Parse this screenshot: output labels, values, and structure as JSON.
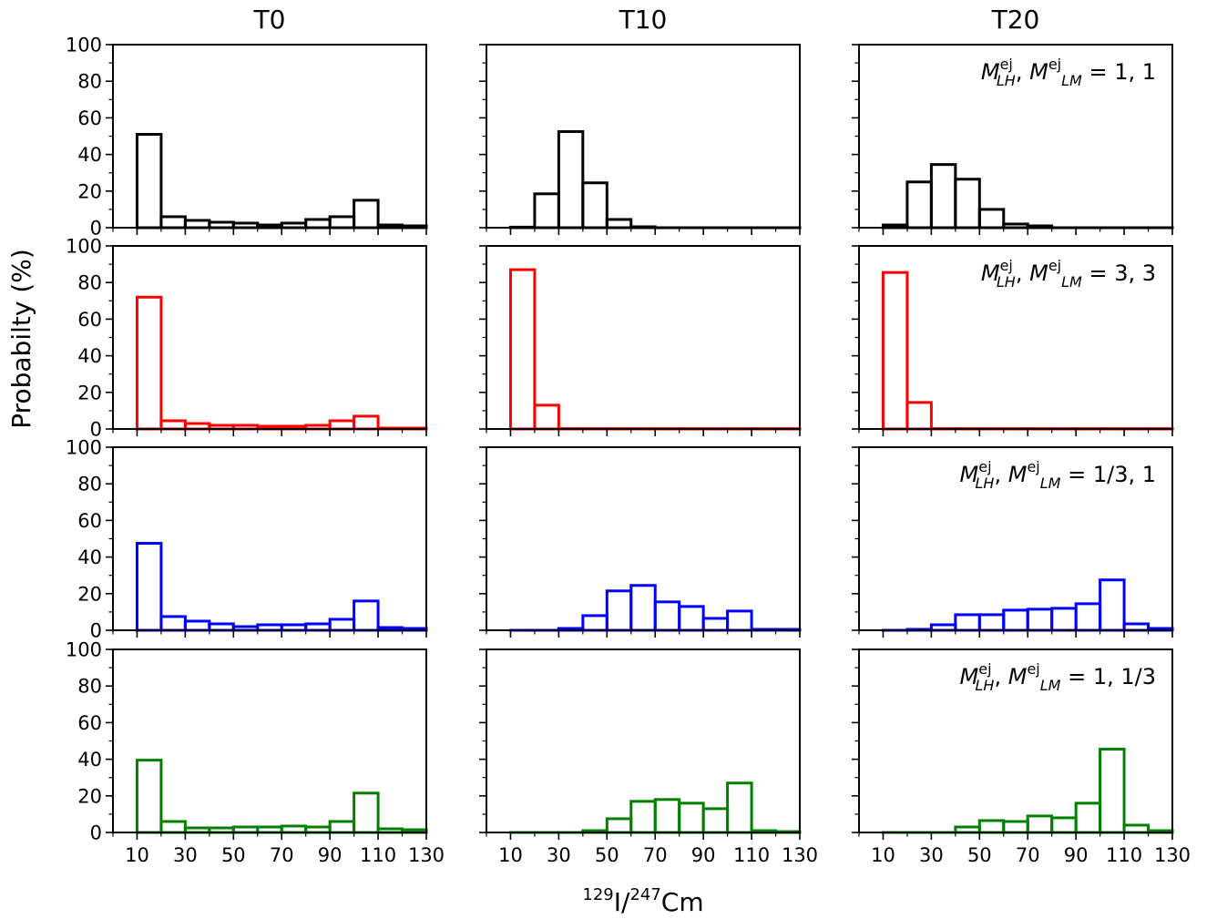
{
  "chart_data": {
    "type": "bar",
    "subtype": "step-histogram-grid",
    "columns": [
      "T0",
      "T10",
      "T20"
    ],
    "ylabel": "Probabilty (%)",
    "xlabel": {
      "sup1": "129",
      "main1": "I/",
      "sup2": "247",
      "main2": "Cm"
    },
    "xlim": [
      0,
      130
    ],
    "ylim": [
      0,
      100
    ],
    "xticks": [
      "10",
      "30",
      "50",
      "70",
      "90",
      "110",
      "130"
    ],
    "yticks": [
      "0",
      "20",
      "40",
      "60",
      "80",
      "100"
    ],
    "bin_edges": [
      10,
      20,
      30,
      40,
      50,
      60,
      70,
      80,
      90,
      100,
      110,
      120,
      130
    ],
    "rows": [
      {
        "color": "#000000",
        "annotation": {
          "m": "M",
          "sup": "ej",
          "sub1": "LH",
          "sub2": "LM",
          "value": " = 1, 1"
        },
        "series": [
          {
            "name": "T0",
            "values": [
              51,
              6,
              4,
              3,
              2.5,
              1.5,
              2.5,
              4.5,
              6,
              15,
              1.5,
              1
            ]
          },
          {
            "name": "T10",
            "values": [
              0.3,
              18.5,
              52.5,
              24.5,
              4.5,
              0.5,
              0,
              0,
              0,
              0,
              0,
              0
            ]
          },
          {
            "name": "T20",
            "values": [
              1.5,
              25,
              34.5,
              26.5,
              10,
              2,
              1,
              0,
              0,
              0,
              0,
              0
            ]
          }
        ]
      },
      {
        "color": "#ff0000",
        "annotation": {
          "m": "M",
          "sup": "ej",
          "sub1": "LH",
          "sub2": "LM",
          "value": " = 3, 3"
        },
        "series": [
          {
            "name": "T0",
            "values": [
              72,
              4.5,
              3,
              2,
              2,
              1.5,
              1.5,
              2,
              4.5,
              7,
              0.5,
              0.5
            ]
          },
          {
            "name": "T10",
            "values": [
              87,
              13,
              0.2,
              0.2,
              0.2,
              0.2,
              0.2,
              0.2,
              0.2,
              0.2,
              0.2,
              0.2
            ]
          },
          {
            "name": "T20",
            "values": [
              85.5,
              14.5,
              0.2,
              0.2,
              0.2,
              0.2,
              0.2,
              0.2,
              0.2,
              0.2,
              0.2,
              0.2
            ]
          }
        ]
      },
      {
        "color": "#0000ff",
        "annotation": {
          "m": "M",
          "sup": "ej",
          "sub1": "LH",
          "sub2": "LM",
          "value": " = 1/3, 1"
        },
        "series": [
          {
            "name": "T0",
            "values": [
              47.5,
              7.5,
              5,
              3.5,
              2,
              3,
              3,
              3.5,
              6,
              16,
              1.5,
              1
            ]
          },
          {
            "name": "T10",
            "values": [
              0,
              0,
              1,
              8,
              21.5,
              24.5,
              15.5,
              13,
              6.5,
              10.5,
              0.5,
              0.5
            ]
          },
          {
            "name": "T20",
            "values": [
              0,
              0.5,
              3,
              8.5,
              8.5,
              11,
              11.5,
              12,
              14.5,
              27.5,
              3.5,
              1
            ]
          }
        ]
      },
      {
        "color": "#008000",
        "annotation": {
          "m": "M",
          "sup": "ej",
          "sub1": "LH",
          "sub2": "LM",
          "value": " = 1, 1/3"
        },
        "series": [
          {
            "name": "T0",
            "values": [
              39.5,
              6,
              2.5,
              2.5,
              3,
              3,
              3.5,
              3,
              6,
              21.5,
              2,
              1.5
            ]
          },
          {
            "name": "T10",
            "values": [
              0,
              0,
              0,
              1,
              7.5,
              17,
              18,
              16,
              13,
              27,
              1,
              0.5
            ]
          },
          {
            "name": "T20",
            "values": [
              0,
              0,
              0,
              3,
              6.5,
              6,
              9,
              8,
              16,
              45.5,
              4,
              1
            ]
          }
        ]
      }
    ]
  }
}
